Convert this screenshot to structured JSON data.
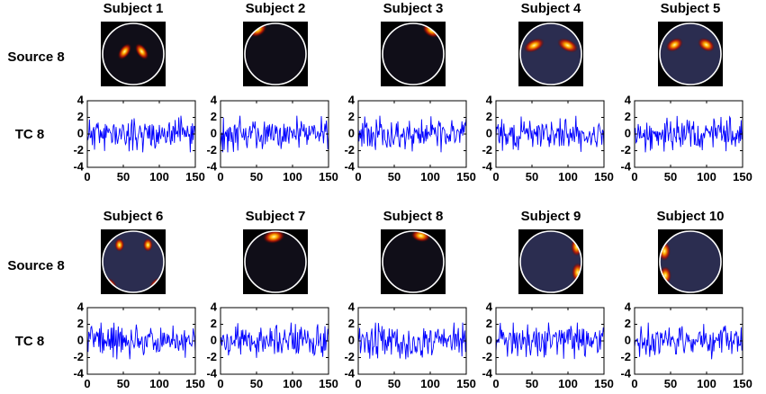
{
  "row_labels": {
    "source": "Source 8",
    "tc": "TC 8"
  },
  "colors": {
    "line": "#0000ff",
    "map_background": "#000000",
    "brain_fill_dark": "#100e18",
    "brain_fill_blue": "#2b2d50",
    "circle": "#ffffff",
    "hot_core": "#ffffa0",
    "hot_mid": "#ffa800",
    "hot_edge": "#c81800"
  },
  "chart_data": [
    {
      "type": "line",
      "title": "Subject 1",
      "series": [
        {
          "seed": 11
        }
      ],
      "xlim": [
        0,
        150
      ],
      "ylim": [
        -4,
        4
      ],
      "xticks": [
        0,
        50,
        100,
        150
      ],
      "yticks": [
        -4,
        -2,
        0,
        2,
        4
      ],
      "grid": false,
      "map_tone": "dark",
      "map_blobs": [
        [
          -0.28,
          -0.08,
          0.17,
          0.3,
          35
        ],
        [
          0.28,
          -0.08,
          0.17,
          0.3,
          -35
        ]
      ]
    },
    {
      "type": "line",
      "title": "Subject 2",
      "series": [
        {
          "seed": 22
        }
      ],
      "xlim": [
        0,
        150
      ],
      "ylim": [
        -4,
        4
      ],
      "xticks": [
        0,
        50,
        100,
        150
      ],
      "yticks": [
        -4,
        -2,
        0,
        2,
        4
      ],
      "grid": false,
      "map_tone": "dark",
      "map_blobs": [
        [
          -0.58,
          -0.8,
          0.32,
          0.22,
          -30
        ]
      ]
    },
    {
      "type": "line",
      "title": "Subject 3",
      "series": [
        {
          "seed": 33
        }
      ],
      "xlim": [
        0,
        150
      ],
      "ylim": [
        -4,
        4
      ],
      "xticks": [
        0,
        50,
        100,
        150
      ],
      "yticks": [
        -4,
        -2,
        0,
        2,
        4
      ],
      "grid": false,
      "map_tone": "dark",
      "map_blobs": [
        [
          0.6,
          -0.78,
          0.32,
          0.22,
          30
        ]
      ]
    },
    {
      "type": "line",
      "title": "Subject 4",
      "series": [
        {
          "seed": 44
        }
      ],
      "xlim": [
        0,
        150
      ],
      "ylim": [
        -4,
        4
      ],
      "xticks": [
        0,
        50,
        100,
        150
      ],
      "yticks": [
        -4,
        -2,
        0,
        2,
        4
      ],
      "grid": false,
      "map_tone": "blue",
      "map_blobs": [
        [
          -0.55,
          -0.28,
          0.36,
          0.2,
          -25
        ],
        [
          0.55,
          -0.28,
          0.36,
          0.2,
          25
        ]
      ]
    },
    {
      "type": "line",
      "title": "Subject 5",
      "series": [
        {
          "seed": 55
        }
      ],
      "xlim": [
        0,
        150
      ],
      "ylim": [
        -4,
        4
      ],
      "xticks": [
        0,
        50,
        100,
        150
      ],
      "yticks": [
        -4,
        -2,
        0,
        2,
        4
      ],
      "grid": false,
      "map_tone": "blue",
      "map_blobs": [
        [
          -0.52,
          -0.3,
          0.3,
          0.2,
          -30
        ],
        [
          0.52,
          -0.3,
          0.3,
          0.2,
          30
        ]
      ]
    },
    {
      "type": "line",
      "title": "Subject 6",
      "series": [
        {
          "seed": 66
        }
      ],
      "xlim": [
        0,
        150
      ],
      "ylim": [
        -4,
        4
      ],
      "xticks": [
        0,
        50,
        100,
        150
      ],
      "yticks": [
        -4,
        -2,
        0,
        2,
        4
      ],
      "grid": false,
      "map_tone": "blue",
      "map_blobs": [
        [
          -0.45,
          -0.55,
          0.16,
          0.22,
          0
        ],
        [
          0.48,
          -0.55,
          0.16,
          0.22,
          0
        ],
        [
          -0.78,
          0.75,
          0.28,
          0.2,
          40
        ],
        [
          0.78,
          0.75,
          0.28,
          0.2,
          -40
        ]
      ]
    },
    {
      "type": "line",
      "title": "Subject 7",
      "series": [
        {
          "seed": 77
        }
      ],
      "xlim": [
        0,
        150
      ],
      "ylim": [
        -4,
        4
      ],
      "xticks": [
        0,
        50,
        100,
        150
      ],
      "yticks": [
        -4,
        -2,
        0,
        2,
        4
      ],
      "grid": false,
      "map_tone": "dark",
      "map_blobs": [
        [
          -0.05,
          -0.82,
          0.36,
          0.22,
          -10
        ]
      ]
    },
    {
      "type": "line",
      "title": "Subject 8",
      "series": [
        {
          "seed": 88
        }
      ],
      "xlim": [
        0,
        150
      ],
      "ylim": [
        -4,
        4
      ],
      "xticks": [
        0,
        50,
        100,
        150
      ],
      "yticks": [
        -4,
        -2,
        0,
        2,
        4
      ],
      "grid": false,
      "map_tone": "dark",
      "map_blobs": [
        [
          0.25,
          -0.85,
          0.32,
          0.2,
          10
        ]
      ]
    },
    {
      "type": "line",
      "title": "Subject 9",
      "series": [
        {
          "seed": 99
        }
      ],
      "xlim": [
        0,
        150
      ],
      "ylim": [
        -4,
        4
      ],
      "xticks": [
        0,
        50,
        100,
        150
      ],
      "yticks": [
        -4,
        -2,
        0,
        2,
        4
      ],
      "grid": false,
      "map_tone": "blue",
      "map_blobs": [
        [
          0.85,
          -0.5,
          0.2,
          0.32,
          0
        ],
        [
          0.88,
          0.35,
          0.2,
          0.32,
          0
        ]
      ]
    },
    {
      "type": "line",
      "title": "Subject 10",
      "series": [
        {
          "seed": 110
        }
      ],
      "xlim": [
        0,
        150
      ],
      "ylim": [
        -4,
        4
      ],
      "xticks": [
        0,
        50,
        100,
        150
      ],
      "yticks": [
        -4,
        -2,
        0,
        2,
        4
      ],
      "grid": false,
      "map_tone": "blue",
      "map_blobs": [
        [
          -0.85,
          -0.35,
          0.2,
          0.32,
          0
        ],
        [
          -0.82,
          0.45,
          0.2,
          0.3,
          0
        ]
      ]
    }
  ]
}
